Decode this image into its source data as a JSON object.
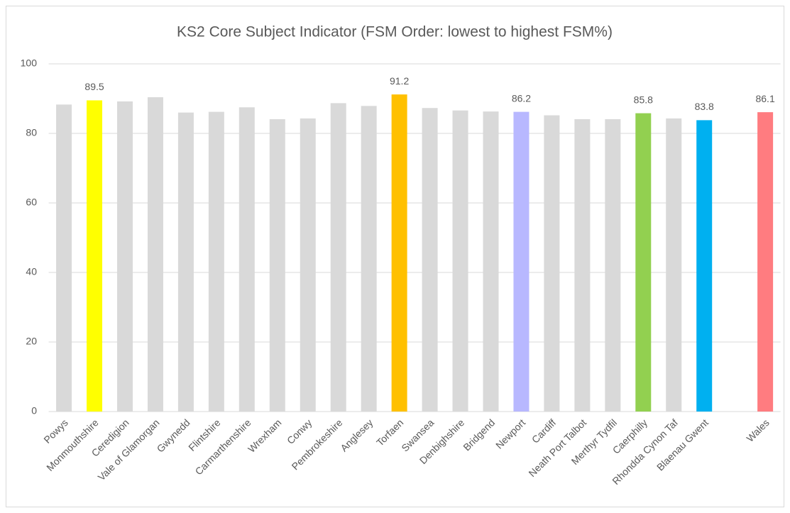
{
  "chart_data": {
    "type": "bar",
    "title": "KS2 Core Subject Indicator (FSM Order: lowest to highest FSM%)",
    "categories": [
      "Powys",
      "Monmouthshire",
      "Ceredigion",
      "Vale of Glamorgan",
      "Gwynedd",
      "Flintshire",
      "Carmarthenshire",
      "Wrexham",
      "Conwy",
      "Pembrokeshire",
      "Anglesey",
      "Torfaen",
      "Swansea",
      "Denbighshire",
      "Bridgend",
      "Newport",
      "Cardiff",
      "Neath Port Talbot",
      "Merthyr Tydfil",
      "Caerphilly",
      "Rhondda Cynon Taf",
      "Blaenau Gwent",
      null,
      "Wales"
    ],
    "values": [
      88.3,
      89.5,
      89.2,
      90.4,
      86.0,
      86.2,
      87.5,
      84.1,
      84.3,
      88.7,
      87.9,
      91.2,
      87.3,
      86.6,
      86.3,
      86.2,
      85.2,
      84.1,
      84.1,
      85.8,
      84.3,
      83.8,
      null,
      86.1
    ],
    "value_labels": [
      null,
      "89.5",
      null,
      null,
      null,
      null,
      null,
      null,
      null,
      null,
      null,
      "91.2",
      null,
      null,
      null,
      "86.2",
      null,
      null,
      null,
      "85.8",
      null,
      "83.8",
      null,
      "86.1"
    ],
    "colors": [
      "#d9d9d9",
      "#ffff00",
      "#d9d9d9",
      "#d9d9d9",
      "#d9d9d9",
      "#d9d9d9",
      "#d9d9d9",
      "#d9d9d9",
      "#d9d9d9",
      "#d9d9d9",
      "#d9d9d9",
      "#ffc000",
      "#d9d9d9",
      "#d9d9d9",
      "#d9d9d9",
      "#b8b8ff",
      "#d9d9d9",
      "#d9d9d9",
      "#d9d9d9",
      "#92d050",
      "#d9d9d9",
      "#00b0f0",
      "#d9d9d9",
      "#ff7c80"
    ],
    "ylim": [
      0,
      100
    ],
    "yticks": [
      0,
      20,
      40,
      60,
      80,
      100
    ],
    "grid": true
  }
}
